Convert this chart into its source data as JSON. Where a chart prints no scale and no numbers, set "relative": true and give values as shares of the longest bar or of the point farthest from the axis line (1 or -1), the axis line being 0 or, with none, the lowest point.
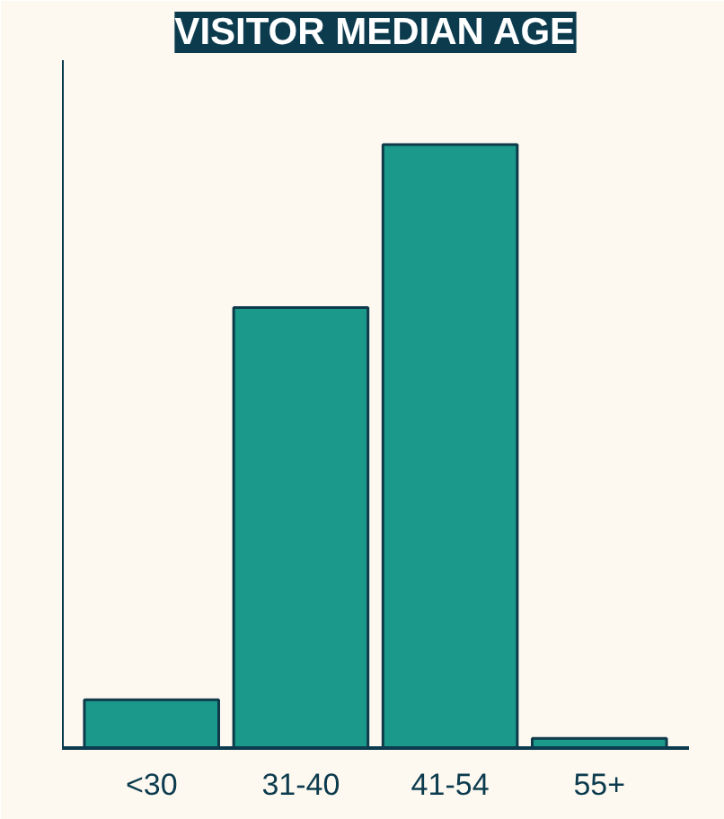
{
  "chart_data": {
    "type": "bar",
    "title": "VISITOR MEDIAN AGE",
    "categories": [
      "<30",
      "31-40",
      "41-54",
      "55+"
    ],
    "values": [
      0.08,
      0.73,
      1,
      0.016
    ],
    "color": "#1b9a8b",
    "relative": true
  }
}
